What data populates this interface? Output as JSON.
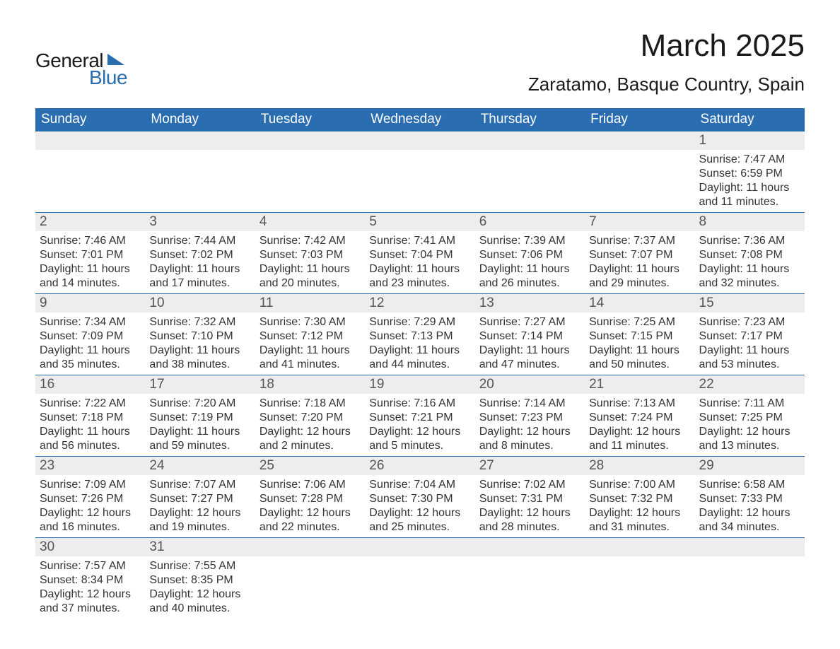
{
  "logo": {
    "text_general": "General",
    "text_blue": "Blue"
  },
  "title": {
    "month": "March 2025",
    "location": "Zaratamo, Basque Country, Spain"
  },
  "style": {
    "header_bg": "#2a6db0",
    "header_fg": "#ffffff",
    "daynum_bg": "#ededed",
    "daynum_fg": "#555555",
    "text_color": "#333333",
    "row_border": "#2a6db0",
    "page_bg": "#ffffff",
    "title_fontsize": 44,
    "location_fontsize": 26,
    "dayhdr_fontsize": 19,
    "body_fontsize": 16
  },
  "day_headers": [
    "Sunday",
    "Monday",
    "Tuesday",
    "Wednesday",
    "Thursday",
    "Friday",
    "Saturday"
  ],
  "weeks": [
    [
      {
        "blank": true
      },
      {
        "blank": true
      },
      {
        "blank": true
      },
      {
        "blank": true
      },
      {
        "blank": true
      },
      {
        "blank": true
      },
      {
        "n": "1",
        "sunrise": "Sunrise: 7:47 AM",
        "sunset": "Sunset: 6:59 PM",
        "dl1": "Daylight: 11 hours",
        "dl2": "and 11 minutes."
      }
    ],
    [
      {
        "n": "2",
        "sunrise": "Sunrise: 7:46 AM",
        "sunset": "Sunset: 7:01 PM",
        "dl1": "Daylight: 11 hours",
        "dl2": "and 14 minutes."
      },
      {
        "n": "3",
        "sunrise": "Sunrise: 7:44 AM",
        "sunset": "Sunset: 7:02 PM",
        "dl1": "Daylight: 11 hours",
        "dl2": "and 17 minutes."
      },
      {
        "n": "4",
        "sunrise": "Sunrise: 7:42 AM",
        "sunset": "Sunset: 7:03 PM",
        "dl1": "Daylight: 11 hours",
        "dl2": "and 20 minutes."
      },
      {
        "n": "5",
        "sunrise": "Sunrise: 7:41 AM",
        "sunset": "Sunset: 7:04 PM",
        "dl1": "Daylight: 11 hours",
        "dl2": "and 23 minutes."
      },
      {
        "n": "6",
        "sunrise": "Sunrise: 7:39 AM",
        "sunset": "Sunset: 7:06 PM",
        "dl1": "Daylight: 11 hours",
        "dl2": "and 26 minutes."
      },
      {
        "n": "7",
        "sunrise": "Sunrise: 7:37 AM",
        "sunset": "Sunset: 7:07 PM",
        "dl1": "Daylight: 11 hours",
        "dl2": "and 29 minutes."
      },
      {
        "n": "8",
        "sunrise": "Sunrise: 7:36 AM",
        "sunset": "Sunset: 7:08 PM",
        "dl1": "Daylight: 11 hours",
        "dl2": "and 32 minutes."
      }
    ],
    [
      {
        "n": "9",
        "sunrise": "Sunrise: 7:34 AM",
        "sunset": "Sunset: 7:09 PM",
        "dl1": "Daylight: 11 hours",
        "dl2": "and 35 minutes."
      },
      {
        "n": "10",
        "sunrise": "Sunrise: 7:32 AM",
        "sunset": "Sunset: 7:10 PM",
        "dl1": "Daylight: 11 hours",
        "dl2": "and 38 minutes."
      },
      {
        "n": "11",
        "sunrise": "Sunrise: 7:30 AM",
        "sunset": "Sunset: 7:12 PM",
        "dl1": "Daylight: 11 hours",
        "dl2": "and 41 minutes."
      },
      {
        "n": "12",
        "sunrise": "Sunrise: 7:29 AM",
        "sunset": "Sunset: 7:13 PM",
        "dl1": "Daylight: 11 hours",
        "dl2": "and 44 minutes."
      },
      {
        "n": "13",
        "sunrise": "Sunrise: 7:27 AM",
        "sunset": "Sunset: 7:14 PM",
        "dl1": "Daylight: 11 hours",
        "dl2": "and 47 minutes."
      },
      {
        "n": "14",
        "sunrise": "Sunrise: 7:25 AM",
        "sunset": "Sunset: 7:15 PM",
        "dl1": "Daylight: 11 hours",
        "dl2": "and 50 minutes."
      },
      {
        "n": "15",
        "sunrise": "Sunrise: 7:23 AM",
        "sunset": "Sunset: 7:17 PM",
        "dl1": "Daylight: 11 hours",
        "dl2": "and 53 minutes."
      }
    ],
    [
      {
        "n": "16",
        "sunrise": "Sunrise: 7:22 AM",
        "sunset": "Sunset: 7:18 PM",
        "dl1": "Daylight: 11 hours",
        "dl2": "and 56 minutes."
      },
      {
        "n": "17",
        "sunrise": "Sunrise: 7:20 AM",
        "sunset": "Sunset: 7:19 PM",
        "dl1": "Daylight: 11 hours",
        "dl2": "and 59 minutes."
      },
      {
        "n": "18",
        "sunrise": "Sunrise: 7:18 AM",
        "sunset": "Sunset: 7:20 PM",
        "dl1": "Daylight: 12 hours",
        "dl2": "and 2 minutes."
      },
      {
        "n": "19",
        "sunrise": "Sunrise: 7:16 AM",
        "sunset": "Sunset: 7:21 PM",
        "dl1": "Daylight: 12 hours",
        "dl2": "and 5 minutes."
      },
      {
        "n": "20",
        "sunrise": "Sunrise: 7:14 AM",
        "sunset": "Sunset: 7:23 PM",
        "dl1": "Daylight: 12 hours",
        "dl2": "and 8 minutes."
      },
      {
        "n": "21",
        "sunrise": "Sunrise: 7:13 AM",
        "sunset": "Sunset: 7:24 PM",
        "dl1": "Daylight: 12 hours",
        "dl2": "and 11 minutes."
      },
      {
        "n": "22",
        "sunrise": "Sunrise: 7:11 AM",
        "sunset": "Sunset: 7:25 PM",
        "dl1": "Daylight: 12 hours",
        "dl2": "and 13 minutes."
      }
    ],
    [
      {
        "n": "23",
        "sunrise": "Sunrise: 7:09 AM",
        "sunset": "Sunset: 7:26 PM",
        "dl1": "Daylight: 12 hours",
        "dl2": "and 16 minutes."
      },
      {
        "n": "24",
        "sunrise": "Sunrise: 7:07 AM",
        "sunset": "Sunset: 7:27 PM",
        "dl1": "Daylight: 12 hours",
        "dl2": "and 19 minutes."
      },
      {
        "n": "25",
        "sunrise": "Sunrise: 7:06 AM",
        "sunset": "Sunset: 7:28 PM",
        "dl1": "Daylight: 12 hours",
        "dl2": "and 22 minutes."
      },
      {
        "n": "26",
        "sunrise": "Sunrise: 7:04 AM",
        "sunset": "Sunset: 7:30 PM",
        "dl1": "Daylight: 12 hours",
        "dl2": "and 25 minutes."
      },
      {
        "n": "27",
        "sunrise": "Sunrise: 7:02 AM",
        "sunset": "Sunset: 7:31 PM",
        "dl1": "Daylight: 12 hours",
        "dl2": "and 28 minutes."
      },
      {
        "n": "28",
        "sunrise": "Sunrise: 7:00 AM",
        "sunset": "Sunset: 7:32 PM",
        "dl1": "Daylight: 12 hours",
        "dl2": "and 31 minutes."
      },
      {
        "n": "29",
        "sunrise": "Sunrise: 6:58 AM",
        "sunset": "Sunset: 7:33 PM",
        "dl1": "Daylight: 12 hours",
        "dl2": "and 34 minutes."
      }
    ],
    [
      {
        "n": "30",
        "sunrise": "Sunrise: 7:57 AM",
        "sunset": "Sunset: 8:34 PM",
        "dl1": "Daylight: 12 hours",
        "dl2": "and 37 minutes."
      },
      {
        "n": "31",
        "sunrise": "Sunrise: 7:55 AM",
        "sunset": "Sunset: 8:35 PM",
        "dl1": "Daylight: 12 hours",
        "dl2": "and 40 minutes."
      },
      {
        "blank": true
      },
      {
        "blank": true
      },
      {
        "blank": true
      },
      {
        "blank": true
      },
      {
        "blank": true
      }
    ]
  ]
}
